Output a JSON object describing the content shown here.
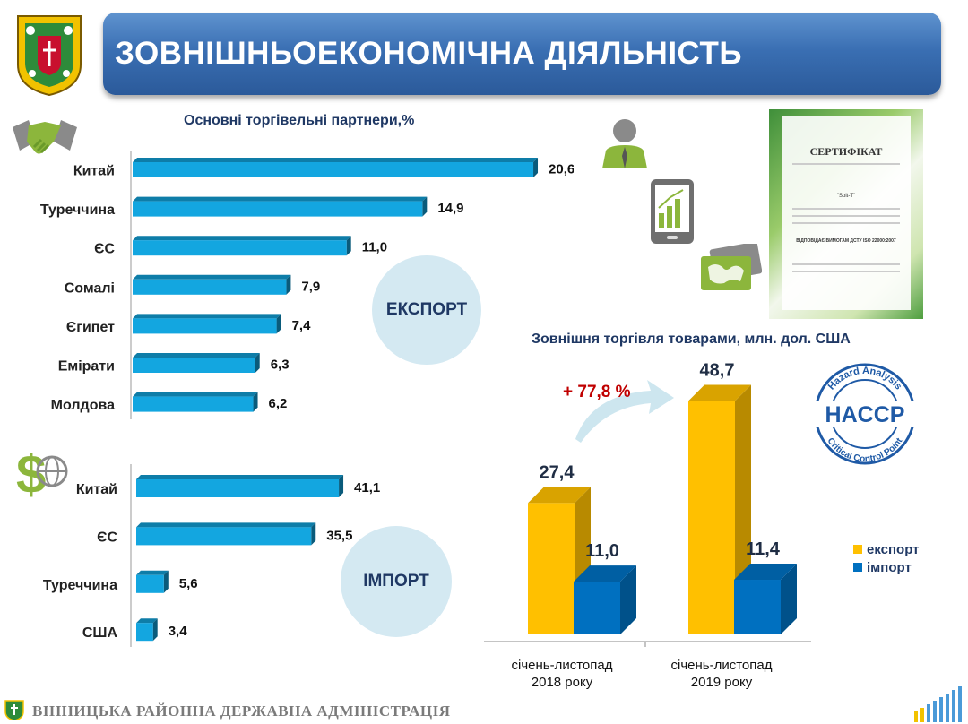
{
  "header": {
    "title": "ЗОВНІШНЬОЕКОНОМІЧНА ДІЯЛЬНІСТЬ"
  },
  "footer": {
    "text": "ВІННИЦЬКА РАЙОННА ДЕРЖАВНА АДМІНІСТРАЦІЯ"
  },
  "certificate": {
    "heading": "СЕРТИФІКАТ",
    "company": "\"Spit-T\"",
    "standard": "ВІДПОВІДАЄ ВИМОГАМ ДСТУ ISO 22000:2007"
  },
  "haccp": {
    "label": "HACCP",
    "ring_top": "Hazard Analysis",
    "ring_bottom": "Critical Control Point"
  },
  "icon_names": [
    "handshake-icon",
    "person-icon",
    "tablet-chart-icon",
    "card-map-icon",
    "dollar-globe-icon",
    "crest-icon"
  ],
  "colors": {
    "bar": "#13a6e0",
    "export": "#ffc000",
    "import": "#0070c0",
    "title_bar": "#3a6fb3"
  },
  "chart_data": [
    {
      "type": "bar",
      "orientation": "horizontal",
      "title": "Основні торгівельні партнери,%",
      "badge": "ЕКСПОРТ",
      "categories": [
        "Китай",
        "Туреччина",
        "ЄС",
        "Сомалі",
        "Єгипет",
        "Емірати",
        "Молдова"
      ],
      "values": [
        20.6,
        14.9,
        11.0,
        7.9,
        7.4,
        6.3,
        6.2
      ],
      "labels": [
        "20,6",
        "14,9",
        "11,0",
        "7,9",
        "7,4",
        "6,3",
        "6,2"
      ]
    },
    {
      "type": "bar",
      "orientation": "horizontal",
      "badge": "ІМПОРТ",
      "categories": [
        "Китай",
        "ЄС",
        "Туреччина",
        "США"
      ],
      "values": [
        41.1,
        35.5,
        5.6,
        3.4
      ],
      "labels": [
        "41,1",
        "35,5",
        "5,6",
        "3,4"
      ]
    },
    {
      "type": "bar",
      "title": "Зовнішня торгівля товарами,  млн. дол. США",
      "categories": [
        "січень-листопад 2018 року",
        "січень-листопад 2019 року"
      ],
      "category_lines": [
        [
          "січень-листопад",
          "2018 року"
        ],
        [
          "січень-листопад",
          "2019 року"
        ]
      ],
      "series": [
        {
          "name": "експорт",
          "values": [
            27.4,
            48.7
          ],
          "labels": [
            "27,4",
            "48,7"
          ]
        },
        {
          "name": "імпорт",
          "values": [
            11.0,
            11.4
          ],
          "labels": [
            "11,0",
            "11,4"
          ]
        }
      ],
      "growth_label": "+ 77,8 %",
      "legend_position": "right"
    }
  ]
}
